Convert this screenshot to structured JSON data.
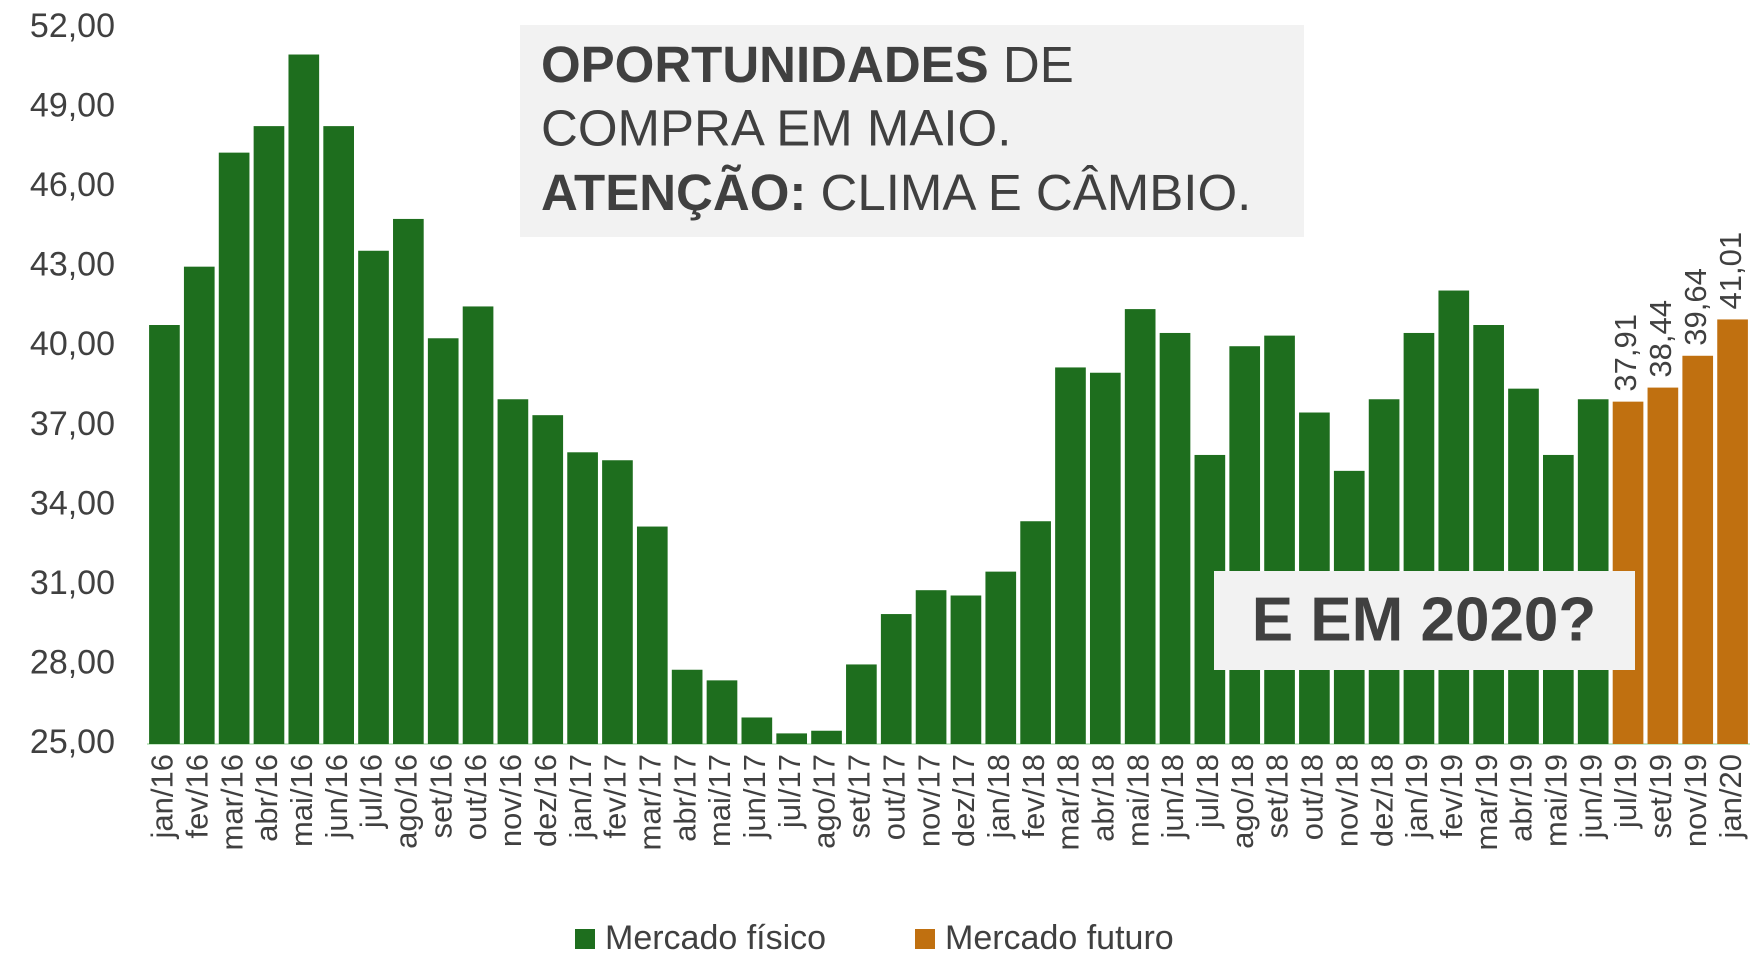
{
  "chart_data": {
    "type": "bar",
    "categories": [
      "jan/16",
      "fev/16",
      "mar/16",
      "abr/16",
      "mai/16",
      "jun/16",
      "jul/16",
      "ago/16",
      "set/16",
      "out/16",
      "nov/16",
      "dez/16",
      "jan/17",
      "fev/17",
      "mar/17",
      "abr/17",
      "mai/17",
      "jun/17",
      "jul/17",
      "ago/17",
      "set/17",
      "out/17",
      "nov/17",
      "dez/17",
      "jan/18",
      "fev/18",
      "mar/18",
      "abr/18",
      "mai/18",
      "jun/18",
      "jul/18",
      "ago/18",
      "set/18",
      "out/18",
      "nov/18",
      "dez/18",
      "jan/19",
      "fev/19",
      "mar/19",
      "abr/19",
      "mai/19",
      "jun/19",
      "jul/19",
      "set/19",
      "nov/19",
      "jan/20"
    ],
    "series": [
      {
        "name": "Mercado físico",
        "color": "#1e6e1e",
        "values": [
          40.8,
          43.0,
          47.3,
          48.3,
          51.0,
          48.3,
          43.6,
          44.8,
          40.3,
          41.5,
          38.0,
          37.4,
          36.0,
          35.7,
          33.2,
          27.8,
          27.4,
          26.0,
          25.4,
          25.5,
          28.0,
          29.9,
          30.8,
          30.6,
          31.5,
          33.4,
          39.2,
          39.0,
          41.4,
          40.5,
          35.9,
          40.0,
          40.4,
          37.5,
          35.3,
          38.0,
          40.5,
          42.1,
          40.8,
          38.4,
          35.9,
          38.0,
          null,
          null,
          null,
          null
        ]
      },
      {
        "name": "Mercado futuro",
        "color": "#c07010",
        "values": [
          null,
          null,
          null,
          null,
          null,
          null,
          null,
          null,
          null,
          null,
          null,
          null,
          null,
          null,
          null,
          null,
          null,
          null,
          null,
          null,
          null,
          null,
          null,
          null,
          null,
          null,
          null,
          null,
          null,
          null,
          null,
          null,
          null,
          null,
          null,
          null,
          null,
          null,
          null,
          null,
          null,
          null,
          37.91,
          38.44,
          39.64,
          41.01
        ],
        "value_labels": [
          null,
          null,
          null,
          null,
          null,
          null,
          null,
          null,
          null,
          null,
          null,
          null,
          null,
          null,
          null,
          null,
          null,
          null,
          null,
          null,
          null,
          null,
          null,
          null,
          null,
          null,
          null,
          null,
          null,
          null,
          null,
          null,
          null,
          null,
          null,
          null,
          null,
          null,
          null,
          null,
          null,
          null,
          "37,91",
          "38,44",
          "39,64",
          "41,01"
        ]
      }
    ],
    "ylim": [
      25,
      52
    ],
    "yticks": [
      {
        "value": 25,
        "label": "25,00"
      },
      {
        "value": 28,
        "label": "28,00"
      },
      {
        "value": 31,
        "label": "31,00"
      },
      {
        "value": 34,
        "label": "34,00"
      },
      {
        "value": 37,
        "label": "37,00"
      },
      {
        "value": 40,
        "label": "40,00"
      },
      {
        "value": 43,
        "label": "43,00"
      },
      {
        "value": 46,
        "label": "46,00"
      },
      {
        "value": 49,
        "label": "49,00"
      },
      {
        "value": 52,
        "label": "52,00"
      }
    ],
    "annotation": {
      "bold1": "OPORTUNIDADES",
      "text1": " DE",
      "text2": "COMPRA EM MAIO.",
      "bold3": "ATENÇÃO:",
      "text3": " CLIMA E CÂMBIO."
    },
    "callout": "E EM 2020?"
  }
}
